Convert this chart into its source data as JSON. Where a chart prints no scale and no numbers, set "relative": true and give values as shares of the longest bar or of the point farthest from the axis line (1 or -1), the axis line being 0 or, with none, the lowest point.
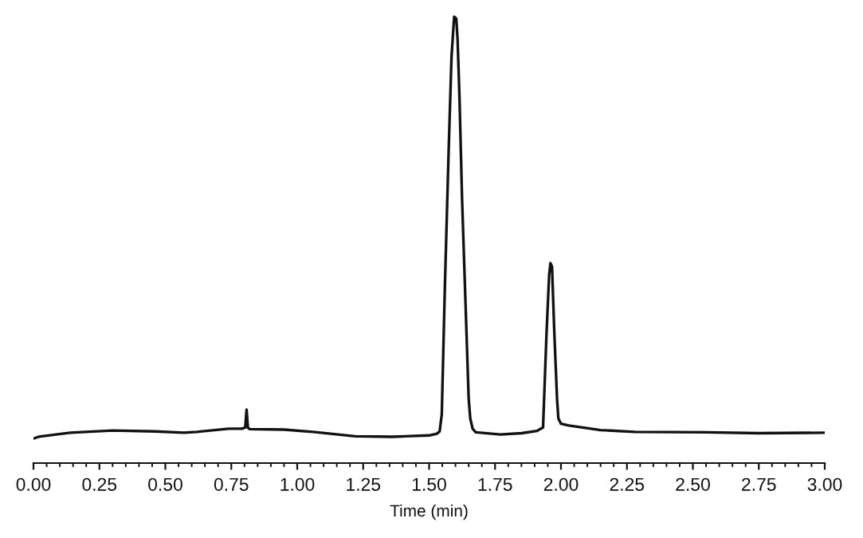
{
  "chart_data": {
    "type": "line",
    "xlabel": "Time (min)",
    "relative": true,
    "color": "#111111",
    "line_style": "solid",
    "x": [
      0,
      0.02,
      0.14,
      0.3,
      0.46,
      0.57,
      0.62,
      0.74,
      0.79,
      0.803,
      0.808,
      0.813,
      0.82,
      0.95,
      1.06,
      1.22,
      1.36,
      1.5,
      1.53,
      1.54,
      1.548,
      1.56,
      1.575,
      1.585,
      1.595,
      1.603,
      1.608,
      1.615,
      1.625,
      1.64,
      1.65,
      1.656,
      1.665,
      1.677,
      1.77,
      1.851,
      1.909,
      1.932,
      1.945,
      1.955,
      1.96,
      1.966,
      1.975,
      1.985,
      1.99,
      2.0,
      2.03,
      2.15,
      2.28,
      2.55,
      2.75,
      3.0
    ],
    "values": [
      0.055,
      0.059,
      0.068,
      0.073,
      0.071,
      0.068,
      0.07,
      0.077,
      0.077,
      0.08,
      0.12,
      0.079,
      0.076,
      0.075,
      0.07,
      0.06,
      0.059,
      0.062,
      0.066,
      0.071,
      0.109,
      0.4,
      0.718,
      0.911,
      1.0,
      0.996,
      0.948,
      0.823,
      0.591,
      0.323,
      0.145,
      0.1,
      0.077,
      0.069,
      0.064,
      0.067,
      0.072,
      0.08,
      0.288,
      0.421,
      0.448,
      0.44,
      0.288,
      0.145,
      0.1,
      0.088,
      0.084,
      0.074,
      0.07,
      0.069,
      0.067,
      0.068
    ],
    "xlim": [
      0,
      3
    ],
    "xticks": [
      {
        "value": 0,
        "label": "0.00"
      },
      {
        "value": 0.05,
        "label": null
      },
      {
        "value": 0.1,
        "label": null
      },
      {
        "value": 0.15,
        "label": null
      },
      {
        "value": 0.2,
        "label": null
      },
      {
        "value": 0.25,
        "label": "0.25"
      },
      {
        "value": 0.3,
        "label": null
      },
      {
        "value": 0.35,
        "label": null
      },
      {
        "value": 0.4,
        "label": null
      },
      {
        "value": 0.45,
        "label": null
      },
      {
        "value": 0.5,
        "label": "0.50"
      },
      {
        "value": 0.55,
        "label": null
      },
      {
        "value": 0.6,
        "label": null
      },
      {
        "value": 0.65,
        "label": null
      },
      {
        "value": 0.7,
        "label": null
      },
      {
        "value": 0.75,
        "label": "0.75"
      },
      {
        "value": 0.8,
        "label": null
      },
      {
        "value": 0.85,
        "label": null
      },
      {
        "value": 0.9,
        "label": null
      },
      {
        "value": 0.95,
        "label": null
      },
      {
        "value": 1.0,
        "label": "1.00"
      },
      {
        "value": 1.05,
        "label": null
      },
      {
        "value": 1.1,
        "label": null
      },
      {
        "value": 1.15,
        "label": null
      },
      {
        "value": 1.2,
        "label": null
      },
      {
        "value": 1.25,
        "label": "1.25"
      },
      {
        "value": 1.3,
        "label": null
      },
      {
        "value": 1.35,
        "label": null
      },
      {
        "value": 1.4,
        "label": null
      },
      {
        "value": 1.45,
        "label": null
      },
      {
        "value": 1.5,
        "label": "1.50"
      },
      {
        "value": 1.55,
        "label": null
      },
      {
        "value": 1.6,
        "label": null
      },
      {
        "value": 1.65,
        "label": null
      },
      {
        "value": 1.7,
        "label": null
      },
      {
        "value": 1.75,
        "label": "1.75"
      },
      {
        "value": 1.8,
        "label": null
      },
      {
        "value": 1.85,
        "label": null
      },
      {
        "value": 1.9,
        "label": null
      },
      {
        "value": 1.95,
        "label": null
      },
      {
        "value": 2.0,
        "label": "2.00"
      },
      {
        "value": 2.05,
        "label": null
      },
      {
        "value": 2.1,
        "label": null
      },
      {
        "value": 2.15,
        "label": null
      },
      {
        "value": 2.2,
        "label": null
      },
      {
        "value": 2.25,
        "label": "2.25"
      },
      {
        "value": 2.3,
        "label": null
      },
      {
        "value": 2.35,
        "label": null
      },
      {
        "value": 2.4,
        "label": null
      },
      {
        "value": 2.45,
        "label": null
      },
      {
        "value": 2.5,
        "label": "2.50"
      },
      {
        "value": 2.55,
        "label": null
      },
      {
        "value": 2.6,
        "label": null
      },
      {
        "value": 2.65,
        "label": null
      },
      {
        "value": 2.7,
        "label": null
      },
      {
        "value": 2.75,
        "label": "2.75"
      },
      {
        "value": 2.8,
        "label": null
      },
      {
        "value": 2.85,
        "label": null
      },
      {
        "value": 2.9,
        "label": null
      },
      {
        "value": 2.95,
        "label": null
      },
      {
        "value": 3.0,
        "label": "3.00"
      }
    ]
  }
}
